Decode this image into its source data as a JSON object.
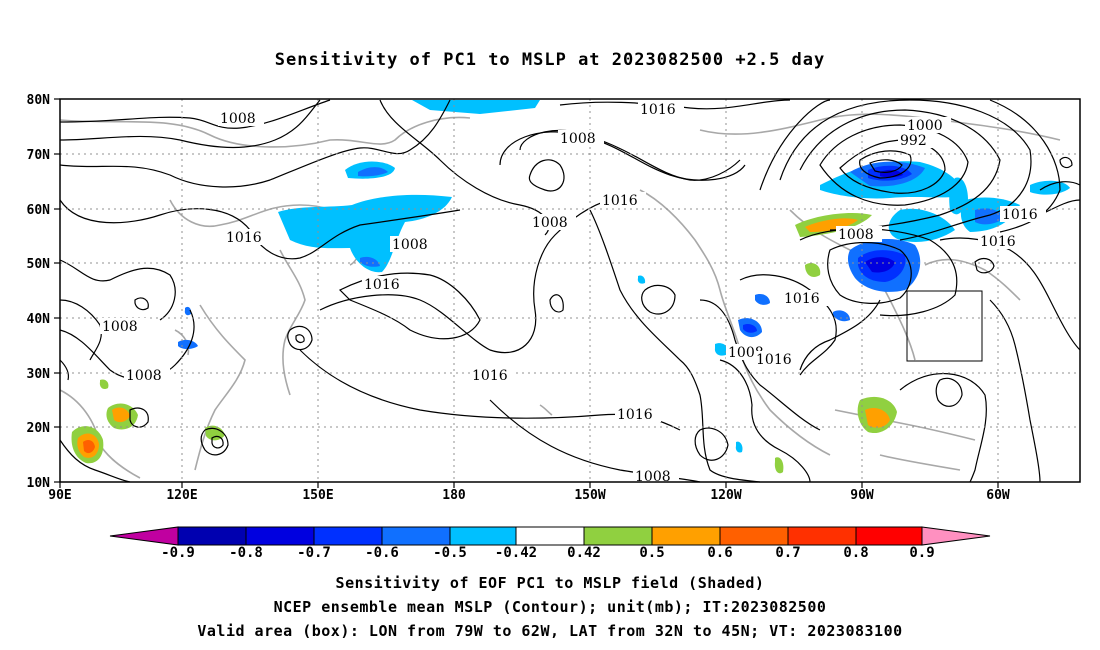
{
  "title": "Sensitivity of PC1 to MSLP at 2023082500 +2.5 day",
  "map": {
    "lat_labels": [
      "80N",
      "70N",
      "60N",
      "50N",
      "40N",
      "30N",
      "20N",
      "10N"
    ],
    "lon_labels": [
      "90E",
      "120E",
      "150E",
      "180",
      "150W",
      "120W",
      "90W",
      "60W"
    ],
    "contour_labels": [
      {
        "text": "1008"
      },
      {
        "text": "1016"
      },
      {
        "text": "1008"
      },
      {
        "text": "1008"
      },
      {
        "text": "1008"
      },
      {
        "text": "1016"
      },
      {
        "text": "1008"
      },
      {
        "text": "1016"
      },
      {
        "text": "1008"
      },
      {
        "text": "1016"
      },
      {
        "text": "1016"
      },
      {
        "text": "1016"
      },
      {
        "text": "1000"
      },
      {
        "text": "992"
      },
      {
        "text": "1008"
      },
      {
        "text": "1016"
      },
      {
        "text": "1016"
      },
      {
        "text": "1016"
      },
      {
        "text": "1008"
      },
      {
        "text": "1016"
      },
      {
        "text": "1008"
      }
    ],
    "valid_box": {
      "lon_min": -79,
      "lon_max": -62,
      "lat_min": 32,
      "lat_max": 45
    }
  },
  "colorbar": {
    "labels": [
      "-0.9",
      "-0.8",
      "-0.7",
      "-0.6",
      "-0.5",
      "-0.42",
      "0.42",
      "0.5",
      "0.6",
      "0.7",
      "0.8",
      "0.9"
    ],
    "colors": [
      "#c000a0",
      "#0000b0",
      "#0000e0",
      "#0030ff",
      "#1070ff",
      "#00c0ff",
      "#ffffff",
      "#90d040",
      "#ffa000",
      "#ff6000",
      "#ff3000",
      "#ff0000",
      "#ff90c0"
    ]
  },
  "captions": [
    "Sensitivity of EOF PC1 to MSLP field (Shaded)",
    "NCEP ensemble mean MSLP (Contour); unit(mb); IT:2023082500",
    "Valid area (box): LON from 79W to 62W, LAT from 32N to 45N; VT: 2023083100"
  ]
}
